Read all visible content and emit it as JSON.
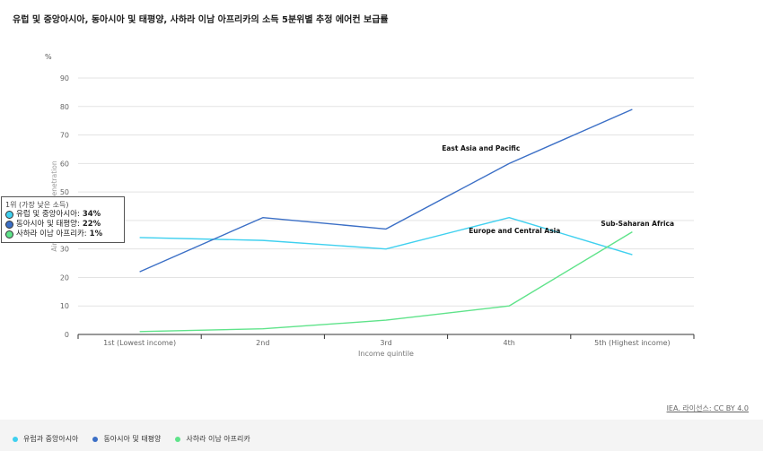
{
  "title": "유럽 및 중앙아시아, 동아시아 및 태평양, 사하라 이남 아프리카의 소득 5분위별 추정 에어컨 보급률",
  "source_text": "IEA. 라이선스: CC BY 4.0",
  "chart_data": {
    "type": "line",
    "categories": [
      "1st (Lowest income)",
      "2nd",
      "3rd",
      "4th",
      "5th (Highest income)"
    ],
    "xlabel": "Income quintile",
    "ylabel": "Air conditioner penetration",
    "y_unit": "%",
    "ylim": [
      0,
      90
    ],
    "yticks": [
      0,
      10,
      20,
      30,
      40,
      50,
      60,
      70,
      80,
      90
    ],
    "grid": true,
    "series": [
      {
        "name": "유럽과 중앙아시아",
        "annotation": "Europe and Central Asia",
        "color": "#3fd0ef",
        "values": [
          34,
          33,
          30,
          41,
          28
        ]
      },
      {
        "name": "동아시아 및 태평양",
        "annotation": "East Asia and Pacific",
        "color": "#3b6fc6",
        "values": [
          22,
          41,
          37,
          60,
          79
        ]
      },
      {
        "name": "사하라 이남 아프리카",
        "annotation": "Sub-Saharan Africa",
        "color": "#5fe38a",
        "values": [
          1,
          2,
          5,
          10,
          36
        ]
      }
    ]
  },
  "tooltip": {
    "header": "1위 (가장 낮은 소득)",
    "rows": [
      {
        "label": "유럽 및 중앙아시아:",
        "value": "34%",
        "color": "#3fd0ef"
      },
      {
        "label": "동아시아 및 태평양:",
        "value": "22%",
        "color": "#3b6fc6"
      },
      {
        "label": "사하라 이남 아프리카:",
        "value": "1%",
        "color": "#5fe38a"
      }
    ]
  }
}
